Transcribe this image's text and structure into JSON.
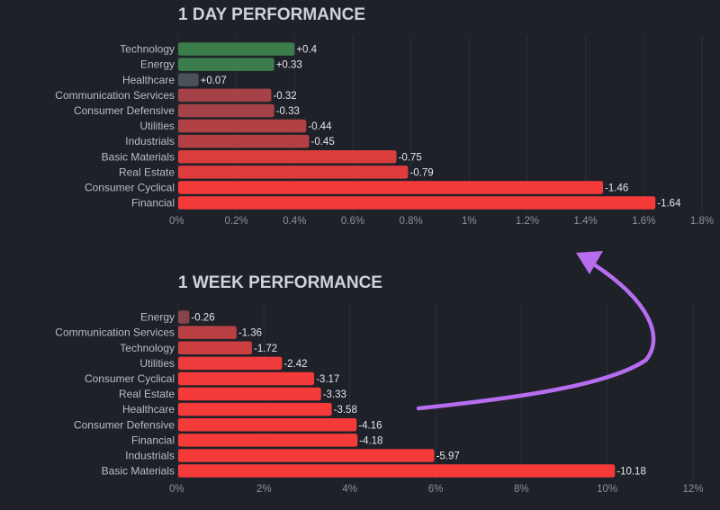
{
  "colors": {
    "background": "#1f2128",
    "grid": "#2c2f37",
    "annotation_arrow": "#b66df0"
  },
  "chart_data": [
    {
      "type": "bar",
      "orientation": "horizontal",
      "title": "1 DAY PERFORMANCE",
      "categories": [
        "Technology",
        "Energy",
        "Healthcare",
        "Communication Services",
        "Consumer Defensive",
        "Utilities",
        "Industrials",
        "Basic Materials",
        "Real Estate",
        "Consumer Cyclical",
        "Financial"
      ],
      "values": [
        0.4,
        0.33,
        0.07,
        -0.32,
        -0.33,
        -0.44,
        -0.45,
        -0.75,
        -0.79,
        -1.46,
        -1.64
      ],
      "value_labels": [
        "+0.4",
        "+0.33",
        "+0.07",
        "-0.32",
        "-0.33",
        "-0.44",
        "-0.45",
        "-0.75",
        "-0.79",
        "-1.46",
        "-1.64"
      ],
      "bar_length": "absolute value",
      "xlim": [
        0,
        1.8
      ],
      "xticks": [
        0,
        0.2,
        0.4,
        0.6,
        0.8,
        1,
        1.2,
        1.4,
        1.6,
        1.8
      ],
      "xtick_labels": [
        "0%",
        "0.2%",
        "0.4%",
        "0.6%",
        "0.8%",
        "1%",
        "1.2%",
        "1.4%",
        "1.6%",
        "1.8%"
      ],
      "grid": true,
      "legend": "none"
    },
    {
      "type": "bar",
      "orientation": "horizontal",
      "title": "1 WEEK PERFORMANCE",
      "categories": [
        "Energy",
        "Communication Services",
        "Technology",
        "Utilities",
        "Consumer Cyclical",
        "Real Estate",
        "Healthcare",
        "Consumer Defensive",
        "Financial",
        "Industrials",
        "Basic Materials"
      ],
      "values": [
        -0.26,
        -1.36,
        -1.72,
        -2.42,
        -3.17,
        -3.33,
        -3.58,
        -4.16,
        -4.18,
        -5.97,
        -10.18
      ],
      "value_labels": [
        "-0.26",
        "-1.36",
        "-1.72",
        "-2.42",
        "-3.17",
        "-3.33",
        "-3.58",
        "-4.16",
        "-4.18",
        "-5.97",
        "-10.18"
      ],
      "bar_length": "absolute value",
      "xlim": [
        0,
        12
      ],
      "xticks": [
        0,
        2,
        4,
        6,
        8,
        10,
        12
      ],
      "xtick_labels": [
        "0%",
        "2%",
        "4%",
        "6%",
        "8%",
        "10%",
        "12%"
      ],
      "grid": true,
      "legend": "none"
    }
  ]
}
